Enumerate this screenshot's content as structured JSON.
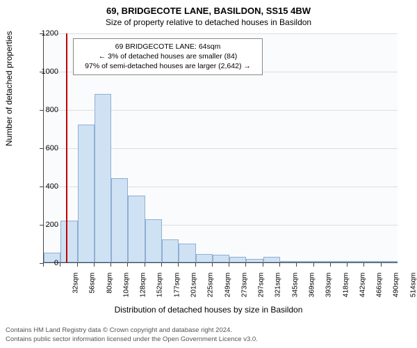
{
  "title": "69, BRIDGECOTE LANE, BASILDON, SS15 4BW",
  "subtitle": "Size of property relative to detached houses in Basildon",
  "chart": {
    "type": "histogram",
    "ylabel": "Number of detached properties",
    "xlabel": "Distribution of detached houses by size in Basildon",
    "ylim": [
      0,
      1200
    ],
    "ytick_step": 200,
    "yticks": [
      0,
      200,
      400,
      600,
      800,
      1000,
      1200
    ],
    "x_categories": [
      "32sqm",
      "56sqm",
      "80sqm",
      "104sqm",
      "128sqm",
      "152sqm",
      "177sqm",
      "201sqm",
      "225sqm",
      "249sqm",
      "273sqm",
      "297sqm",
      "321sqm",
      "345sqm",
      "369sqm",
      "393sqm",
      "418sqm",
      "442sqm",
      "466sqm",
      "490sqm",
      "514sqm"
    ],
    "values": [
      50,
      220,
      720,
      880,
      440,
      350,
      225,
      120,
      100,
      45,
      40,
      30,
      20,
      30,
      5,
      3,
      2,
      2,
      2,
      1,
      1
    ],
    "bar_fill": "#cfe2f3",
    "bar_stroke": "#8faed3",
    "background": "#fafbfc",
    "grid_color": "#dddddd",
    "axis_color": "#444444",
    "marker_value": 64,
    "marker_color": "#c00000",
    "label_fontsize": 12,
    "tick_fontsize": 11
  },
  "info_box": {
    "line1": "69 BRIDGECOTE LANE: 64sqm",
    "line2": "← 3% of detached houses are smaller (84)",
    "line3": "97% of semi-detached houses are larger (2,642) →"
  },
  "footer": {
    "line1": "Contains HM Land Registry data © Crown copyright and database right 2024.",
    "line2": "Contains public sector information licensed under the Open Government Licence v3.0."
  }
}
